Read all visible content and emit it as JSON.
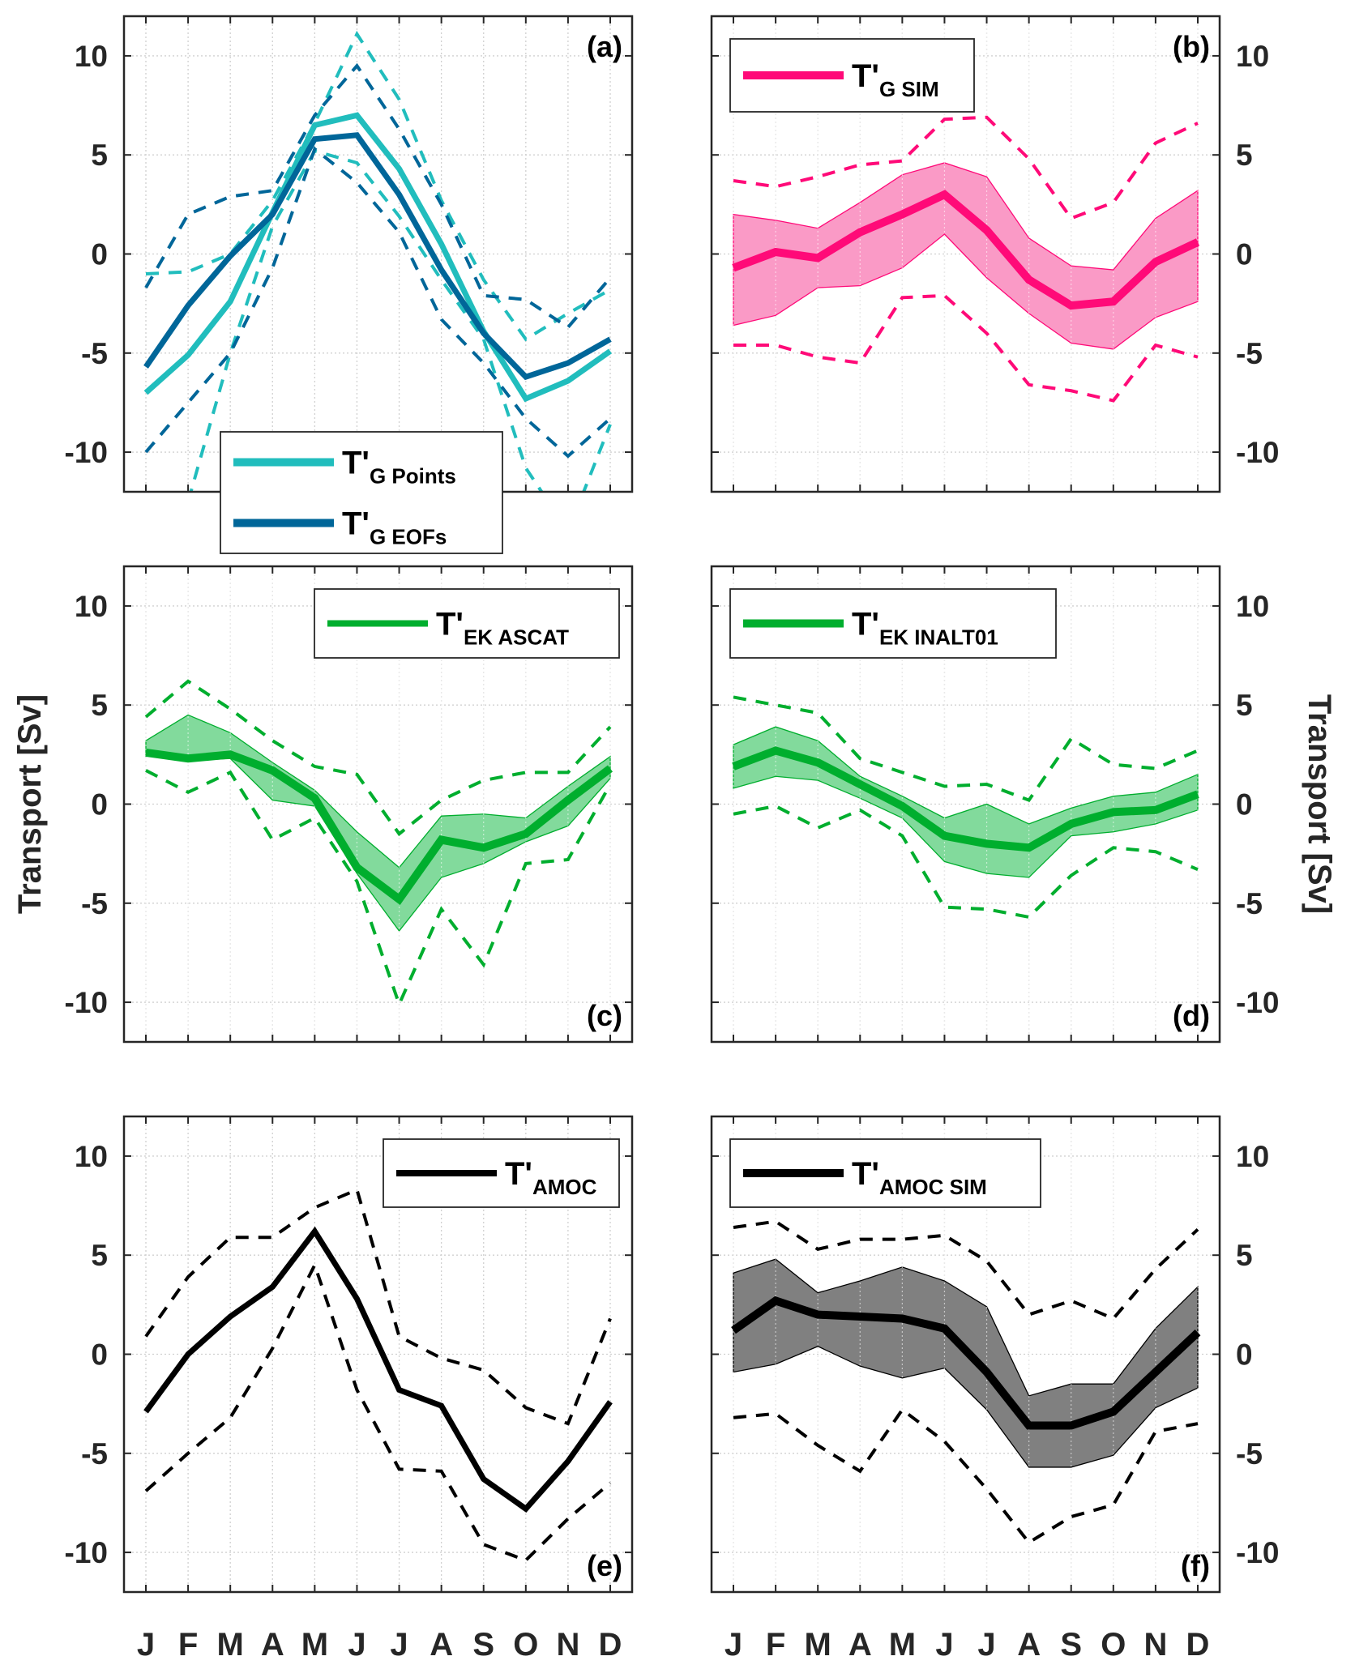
{
  "figure": {
    "months": [
      "J",
      "F",
      "M",
      "A",
      "M",
      "J",
      "J",
      "A",
      "S",
      "O",
      "N",
      "D"
    ],
    "ylabel": "Transport [Sv]",
    "yticks": [
      10,
      5,
      0,
      -5,
      -10
    ],
    "ylim": [
      -12,
      12
    ]
  },
  "colors": {
    "g_points": "#21bdbd",
    "g_eofs": "#006699",
    "g_sim": "#ff0a78",
    "g_sim_fill": "#fa9ac6",
    "ek": "#00ae2e",
    "ek_fill": "#82da9c",
    "amoc": "#000000",
    "amoc_fill": "#808080"
  },
  "chart_data": [
    {
      "id": "a",
      "type": "line",
      "panel_label": "(a)",
      "label_position": "top-right",
      "ytick_side": "left",
      "show_month_labels": false,
      "xlabel": "",
      "ylabel": "",
      "categories": [
        "J",
        "F",
        "M",
        "A",
        "M",
        "J",
        "J",
        "A",
        "S",
        "O",
        "N",
        "D"
      ],
      "ylim": [
        -12,
        12
      ],
      "grid": true,
      "legend": {
        "placement": "bottom-center",
        "entries": [
          {
            "main": "T'",
            "sub": "G Points",
            "color_key": "g_points"
          },
          {
            "main": "T'",
            "sub": "G EOFs",
            "color_key": "g_eofs"
          }
        ]
      },
      "series": [
        {
          "name": "T'G Points",
          "color_key": "g_points",
          "style": "solid",
          "values": [
            -7.0,
            -5.1,
            -2.4,
            2.1,
            6.5,
            7.0,
            4.3,
            0.5,
            -3.9,
            -7.3,
            -6.4,
            -4.9
          ]
        },
        {
          "name": "T'G EOFs",
          "color_key": "g_eofs",
          "style": "solid",
          "values": [
            -5.7,
            -2.6,
            -0.1,
            2.0,
            5.8,
            6.0,
            3.0,
            -0.8,
            -4.0,
            -6.2,
            -5.5,
            -4.3
          ]
        },
        {
          "name": "T'G Points upper",
          "color_key": "g_points",
          "style": "dashed",
          "values": [
            -1.0,
            -0.9,
            0.0,
            2.7,
            6.6,
            11.1,
            7.8,
            2.7,
            -1.3,
            -4.3,
            -3.0,
            -1.8
          ]
        },
        {
          "name": "T'G Points lower",
          "color_key": "g_points",
          "style": "dashed",
          "values": [
            -19.0,
            -12.5,
            -5.0,
            1.4,
            5.2,
            4.6,
            1.9,
            -1.3,
            -4.3,
            -10.8,
            -14.0,
            -8.6
          ]
        },
        {
          "name": "T'G EOFs upper",
          "color_key": "g_eofs",
          "style": "dashed",
          "values": [
            -1.7,
            2.0,
            2.9,
            3.2,
            7.0,
            9.5,
            6.3,
            2.5,
            -2.1,
            -2.3,
            -3.7,
            -1.2
          ]
        },
        {
          "name": "T'G EOFs lower",
          "color_key": "g_eofs",
          "style": "dashed",
          "values": [
            -10.0,
            -7.5,
            -5.0,
            -0.7,
            5.3,
            3.6,
            1.1,
            -3.3,
            -5.5,
            -8.3,
            -10.2,
            -8.3
          ]
        }
      ]
    },
    {
      "id": "b",
      "type": "line",
      "panel_label": "(b)",
      "label_position": "top-right",
      "ytick_side": "right",
      "show_month_labels": false,
      "xlabel": "",
      "ylabel": "",
      "categories": [
        "J",
        "F",
        "M",
        "A",
        "M",
        "J",
        "J",
        "A",
        "S",
        "O",
        "N",
        "D"
      ],
      "ylim": [
        -12,
        12
      ],
      "grid": true,
      "legend": {
        "placement": "top-left",
        "entries": [
          {
            "main": "T'",
            "sub": "G SIM",
            "color_key": "g_sim"
          }
        ]
      },
      "band": {
        "color_key": "g_sim_fill",
        "edge_key": "g_sim",
        "upper": [
          2.0,
          1.7,
          1.3,
          2.6,
          4.0,
          4.6,
          3.9,
          0.8,
          -0.6,
          -0.8,
          1.8,
          3.2
        ],
        "lower": [
          -3.6,
          -3.1,
          -1.7,
          -1.6,
          -0.7,
          1.0,
          -1.2,
          -3.0,
          -4.5,
          -4.8,
          -3.2,
          -2.4
        ]
      },
      "series": [
        {
          "name": "T'G SIM",
          "color_key": "g_sim",
          "style": "solid",
          "thick": true,
          "values": [
            -0.7,
            0.1,
            -0.2,
            1.1,
            2.0,
            3.0,
            1.2,
            -1.3,
            -2.6,
            -2.4,
            -0.4,
            0.6
          ]
        },
        {
          "name": "T'G SIM upper",
          "color_key": "g_sim",
          "style": "dashed",
          "values": [
            3.7,
            3.4,
            3.9,
            4.5,
            4.7,
            6.8,
            6.9,
            4.8,
            1.8,
            2.6,
            5.6,
            6.6
          ]
        },
        {
          "name": "T'G SIM lower",
          "color_key": "g_sim",
          "style": "dashed",
          "values": [
            -4.6,
            -4.6,
            -5.2,
            -5.5,
            -2.2,
            -2.1,
            -4.0,
            -6.6,
            -6.9,
            -7.4,
            -4.6,
            -5.2
          ]
        }
      ]
    },
    {
      "id": "c",
      "type": "line",
      "panel_label": "(c)",
      "label_position": "bottom-right",
      "ytick_side": "left",
      "show_month_labels": false,
      "xlabel": "",
      "ylabel": "Transport [Sv]",
      "ylabel_side": "left",
      "categories": [
        "J",
        "F",
        "M",
        "A",
        "M",
        "J",
        "J",
        "A",
        "S",
        "O",
        "N",
        "D"
      ],
      "ylim": [
        -12,
        12
      ],
      "grid": true,
      "legend": {
        "placement": "top-right",
        "entries": [
          {
            "main": "T'",
            "sub": "EK ASCAT",
            "color_key": "ek"
          }
        ]
      },
      "band": {
        "color_key": "ek_fill",
        "edge_key": "ek",
        "upper": [
          3.2,
          4.5,
          3.6,
          2.1,
          0.7,
          -1.4,
          -3.2,
          -0.6,
          -0.5,
          -0.7,
          0.9,
          2.4
        ],
        "lower": [
          2.5,
          2.2,
          2.3,
          0.2,
          -0.1,
          -3.5,
          -6.4,
          -3.7,
          -3.0,
          -1.9,
          -1.1,
          1.3
        ]
      },
      "series": [
        {
          "name": "T'EK ASCAT",
          "color_key": "ek",
          "style": "solid",
          "thick": true,
          "values": [
            2.6,
            2.3,
            2.5,
            1.7,
            0.3,
            -3.2,
            -4.8,
            -1.8,
            -2.2,
            -1.5,
            0.2,
            1.8
          ]
        },
        {
          "name": "T'EK ASCAT upper",
          "color_key": "ek",
          "style": "dashed",
          "values": [
            4.4,
            6.2,
            4.8,
            3.2,
            1.9,
            1.5,
            -1.5,
            0.2,
            1.2,
            1.6,
            1.6,
            3.9
          ]
        },
        {
          "name": "T'EK ASCAT lower",
          "color_key": "ek",
          "style": "dashed",
          "values": [
            1.7,
            0.6,
            1.6,
            -1.8,
            -0.7,
            -3.9,
            -10.1,
            -5.3,
            -8.1,
            -3.0,
            -2.8,
            1.0
          ]
        }
      ]
    },
    {
      "id": "d",
      "type": "line",
      "panel_label": "(d)",
      "label_position": "bottom-right",
      "ytick_side": "right",
      "show_month_labels": false,
      "xlabel": "",
      "ylabel": "Transport [Sv]",
      "ylabel_side": "right",
      "categories": [
        "J",
        "F",
        "M",
        "A",
        "M",
        "J",
        "J",
        "A",
        "S",
        "O",
        "N",
        "D"
      ],
      "ylim": [
        -12,
        12
      ],
      "grid": true,
      "legend": {
        "placement": "top-left",
        "entries": [
          {
            "main": "T'",
            "sub": "EK INALT01",
            "color_key": "ek"
          }
        ]
      },
      "band": {
        "color_key": "ek_fill",
        "edge_key": "ek",
        "upper": [
          3.0,
          3.9,
          3.2,
          1.4,
          0.4,
          -0.7,
          0.0,
          -1.0,
          -0.2,
          0.4,
          0.6,
          1.5
        ],
        "lower": [
          0.8,
          1.4,
          1.2,
          0.3,
          -0.7,
          -2.9,
          -3.5,
          -3.7,
          -1.6,
          -1.4,
          -1.0,
          -0.3
        ]
      },
      "series": [
        {
          "name": "T'EK INALT01",
          "color_key": "ek",
          "style": "solid",
          "thick": true,
          "values": [
            1.9,
            2.7,
            2.1,
            1.0,
            -0.1,
            -1.6,
            -2.0,
            -2.2,
            -1.0,
            -0.4,
            -0.3,
            0.5
          ]
        },
        {
          "name": "T'EK INALT01 upper",
          "color_key": "ek",
          "style": "dashed",
          "values": [
            5.4,
            5.0,
            4.6,
            2.3,
            1.6,
            0.9,
            1.0,
            0.2,
            3.3,
            2.0,
            1.8,
            2.7
          ]
        },
        {
          "name": "T'EK INALT01 lower",
          "color_key": "ek",
          "style": "dashed",
          "values": [
            -0.5,
            -0.1,
            -1.2,
            -0.3,
            -1.6,
            -5.2,
            -5.3,
            -5.7,
            -3.6,
            -2.2,
            -2.4,
            -3.3
          ]
        }
      ]
    },
    {
      "id": "e",
      "type": "line",
      "panel_label": "(e)",
      "label_position": "bottom-right",
      "ytick_side": "left",
      "show_month_labels": true,
      "xlabel": "",
      "ylabel": "",
      "categories": [
        "J",
        "F",
        "M",
        "A",
        "M",
        "J",
        "J",
        "A",
        "S",
        "O",
        "N",
        "D"
      ],
      "ylim": [
        -12,
        12
      ],
      "grid": true,
      "legend": {
        "placement": "top-right",
        "entries": [
          {
            "main": "T'",
            "sub": "AMOC",
            "color_key": "amoc"
          }
        ]
      },
      "series": [
        {
          "name": "T'AMOC",
          "color_key": "amoc",
          "style": "solid",
          "values": [
            -2.9,
            0.0,
            1.9,
            3.4,
            6.2,
            2.8,
            -1.8,
            -2.6,
            -6.3,
            -7.8,
            -5.4,
            -2.4
          ]
        },
        {
          "name": "T'AMOC upper",
          "color_key": "amoc",
          "style": "dashed",
          "values": [
            0.9,
            3.9,
            5.9,
            5.9,
            7.4,
            8.3,
            0.9,
            -0.2,
            -0.8,
            -2.7,
            -3.5,
            1.8
          ]
        },
        {
          "name": "T'AMOC lower",
          "color_key": "amoc",
          "style": "dashed",
          "values": [
            -6.9,
            -5.0,
            -3.2,
            0.3,
            4.5,
            -1.8,
            -5.8,
            -5.9,
            -9.6,
            -10.4,
            -8.3,
            -6.5
          ]
        }
      ]
    },
    {
      "id": "f",
      "type": "line",
      "panel_label": "(f)",
      "label_position": "bottom-right",
      "ytick_side": "right",
      "show_month_labels": true,
      "xlabel": "",
      "ylabel": "",
      "categories": [
        "J",
        "F",
        "M",
        "A",
        "M",
        "J",
        "J",
        "A",
        "S",
        "O",
        "N",
        "D"
      ],
      "ylim": [
        -12,
        12
      ],
      "grid": true,
      "legend": {
        "placement": "top-left",
        "entries": [
          {
            "main": "T'",
            "sub": "AMOC SIM",
            "color_key": "amoc"
          }
        ]
      },
      "band": {
        "color_key": "amoc_fill",
        "edge_key": "amoc",
        "upper": [
          4.1,
          4.8,
          3.1,
          3.7,
          4.4,
          3.7,
          2.4,
          -2.1,
          -1.5,
          -1.5,
          1.3,
          3.4
        ],
        "lower": [
          -0.9,
          -0.5,
          0.4,
          -0.6,
          -1.2,
          -0.7,
          -2.8,
          -5.7,
          -5.7,
          -5.1,
          -2.7,
          -1.7
        ]
      },
      "series": [
        {
          "name": "T'AMOC SIM",
          "color_key": "amoc",
          "style": "solid",
          "thick": true,
          "values": [
            1.2,
            2.7,
            2.0,
            1.9,
            1.8,
            1.3,
            -0.9,
            -3.6,
            -3.6,
            -2.9,
            -0.9,
            1.1
          ]
        },
        {
          "name": "T'AMOC SIM upper",
          "color_key": "amoc",
          "style": "dashed",
          "values": [
            6.4,
            6.7,
            5.3,
            5.8,
            5.8,
            6.0,
            4.7,
            2.0,
            2.7,
            1.8,
            4.3,
            6.3
          ]
        },
        {
          "name": "T'AMOC SIM lower",
          "color_key": "amoc",
          "style": "dashed",
          "values": [
            -3.2,
            -3.0,
            -4.6,
            -5.9,
            -2.8,
            -4.4,
            -6.8,
            -9.5,
            -8.2,
            -7.6,
            -3.9,
            -3.5
          ]
        }
      ]
    }
  ]
}
